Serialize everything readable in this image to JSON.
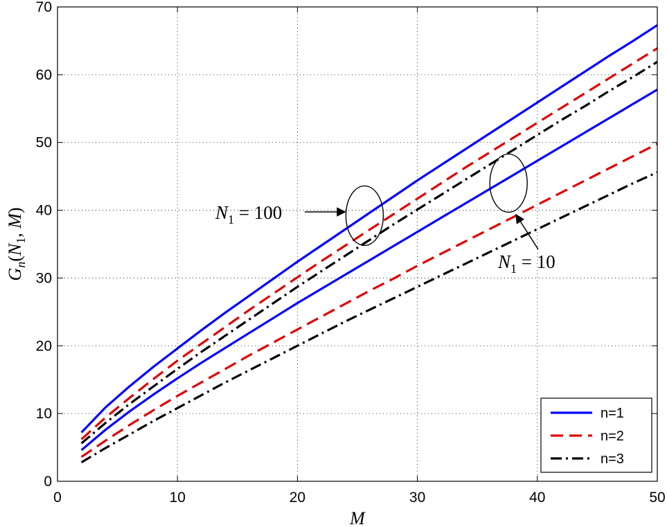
{
  "chart_data": {
    "type": "line",
    "title": "",
    "xlabel": "M",
    "ylabel": "G_n(N_1, M)",
    "xlim": [
      0,
      50
    ],
    "ylim": [
      0,
      70
    ],
    "xticks": [
      0,
      10,
      20,
      30,
      40,
      50
    ],
    "yticks": [
      0,
      10,
      20,
      30,
      40,
      50,
      60,
      70
    ],
    "grid": true,
    "legend_position": "bottom-right",
    "x": [
      2,
      4,
      6,
      8,
      10,
      12,
      14,
      16,
      18,
      20,
      22,
      24,
      26,
      28,
      30,
      32,
      34,
      36,
      38,
      40,
      42,
      44,
      46,
      48,
      50
    ],
    "series": [
      {
        "name": "n=1",
        "group": "N1=100",
        "color": "#0000ff",
        "style": "solid",
        "values": [
          7.2,
          10.9,
          14.0,
          16.9,
          19.6,
          22.3,
          24.9,
          27.4,
          29.9,
          32.4,
          34.8,
          37.2,
          39.6,
          42.0,
          44.4,
          46.7,
          49.0,
          51.3,
          53.6,
          55.9,
          58.2,
          60.5,
          62.8,
          65.0,
          67.3
        ]
      },
      {
        "name": "n=2",
        "group": "N1=100",
        "color": "#e00000",
        "style": "dashed",
        "values": [
          6.2,
          9.4,
          12.3,
          15.1,
          17.8,
          20.3,
          22.8,
          25.3,
          27.7,
          30.1,
          32.5,
          34.8,
          37.1,
          39.4,
          41.7,
          44.0,
          46.3,
          48.5,
          50.7,
          52.9,
          55.1,
          57.3,
          59.5,
          61.7,
          63.9
        ]
      },
      {
        "name": "n=3",
        "group": "N1=100",
        "color": "#000000",
        "style": "dashdot",
        "values": [
          5.6,
          8.6,
          11.4,
          14.0,
          16.6,
          19.1,
          21.5,
          23.9,
          26.3,
          28.7,
          31.0,
          33.3,
          35.6,
          37.9,
          40.1,
          42.3,
          44.5,
          46.7,
          48.9,
          51.1,
          53.3,
          55.4,
          57.6,
          59.7,
          61.9
        ]
      },
      {
        "name": "n=1",
        "group": "N1=10",
        "color": "#0000ff",
        "style": "solid",
        "values": [
          4.6,
          7.6,
          10.3,
          12.8,
          15.2,
          17.5,
          19.7,
          21.9,
          24.1,
          26.3,
          28.4,
          30.5,
          32.6,
          34.7,
          36.8,
          38.9,
          41.0,
          43.1,
          45.2,
          47.3,
          49.4,
          51.5,
          53.6,
          55.7,
          57.8
        ]
      },
      {
        "name": "n=2",
        "group": "N1=10",
        "color": "#e00000",
        "style": "dashed",
        "values": [
          3.6,
          6.0,
          8.3,
          10.5,
          12.6,
          14.6,
          16.6,
          18.6,
          20.5,
          22.4,
          24.3,
          26.2,
          28.1,
          29.9,
          31.8,
          33.6,
          35.4,
          37.2,
          39.0,
          40.8,
          42.6,
          44.4,
          46.2,
          48.0,
          49.8
        ]
      },
      {
        "name": "n=3",
        "group": "N1=10",
        "color": "#000000",
        "style": "dashdot",
        "values": [
          2.8,
          4.9,
          6.9,
          8.9,
          10.8,
          12.7,
          14.6,
          16.4,
          18.2,
          20.0,
          21.8,
          23.6,
          25.3,
          27.0,
          28.7,
          30.4,
          32.1,
          33.8,
          35.5,
          37.2,
          38.9,
          40.6,
          42.3,
          44.0,
          45.6
        ]
      }
    ],
    "annotations": [
      {
        "base": "N",
        "sub": "1",
        "rest": " = 100",
        "target_group": "N1=100",
        "ellipse_center": [
          25.6,
          39.2
        ]
      },
      {
        "base": "N",
        "sub": "1",
        "rest": " = 10",
        "target_group": "N1=10",
        "ellipse_center": [
          37.6,
          44.0
        ]
      }
    ],
    "legend": [
      "n=1",
      "n=2",
      "n=3"
    ]
  }
}
